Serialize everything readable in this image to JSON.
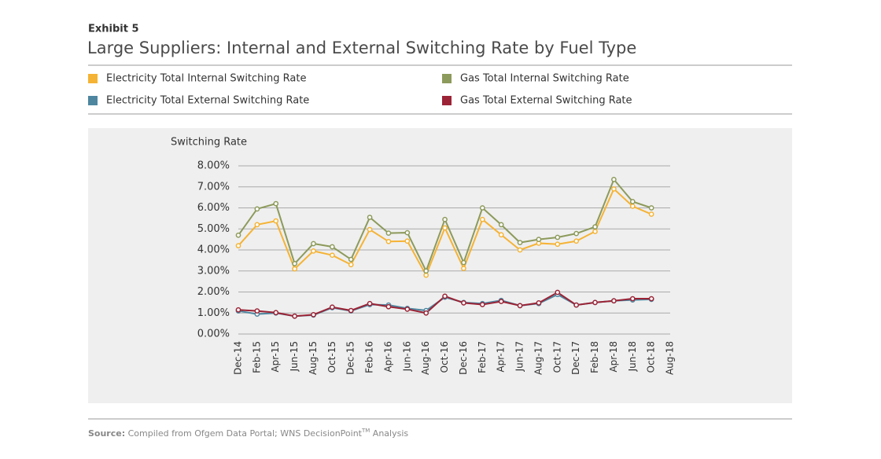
{
  "header": {
    "exhibit": "Exhibit 5"
  },
  "chart_data": {
    "type": "line",
    "title": "Large Suppliers: Internal and External Switching Rate by Fuel Type",
    "y_label": "Switching Rate",
    "categories": [
      "Dec-14",
      "Feb-15",
      "Apr-15",
      "Jun-15",
      "Aug-15",
      "Oct-15",
      "Dec-15",
      "Feb-16",
      "Apr-16",
      "Jun-16",
      "Aug-16",
      "Oct-16",
      "Dec-16",
      "Feb-17",
      "Apr-17",
      "Jun-17",
      "Aug-17",
      "Oct-17",
      "Dec-17",
      "Feb-18",
      "Apr-18",
      "Jun-18",
      "Oct-18",
      "Aug-18"
    ],
    "series": [
      {
        "name": "Electricity Total Internal Switching Rate",
        "color": "#f5b335",
        "values": [
          4.2,
          5.2,
          5.38,
          3.1,
          3.95,
          3.75,
          3.3,
          4.97,
          4.4,
          4.42,
          2.8,
          5.05,
          3.12,
          5.45,
          4.72,
          4.0,
          4.32,
          4.27,
          4.42,
          4.88,
          6.9,
          6.08,
          5.7,
          null
        ]
      },
      {
        "name": "Gas Total Internal Switching Rate",
        "color": "#8c9a5b",
        "values": [
          4.7,
          5.95,
          6.2,
          3.35,
          4.3,
          4.15,
          3.55,
          5.55,
          4.8,
          4.82,
          3.0,
          5.45,
          3.4,
          6.0,
          5.2,
          4.35,
          4.5,
          4.6,
          4.78,
          5.1,
          7.35,
          6.3,
          6.0,
          null
        ]
      },
      {
        "name": "Electricity Total External Switching Rate",
        "color": "#4e86a0",
        "values": [
          1.1,
          0.95,
          1.0,
          0.85,
          0.9,
          1.25,
          1.1,
          1.4,
          1.38,
          1.22,
          1.12,
          1.75,
          1.5,
          1.45,
          1.6,
          1.35,
          1.45,
          1.88,
          1.38,
          1.5,
          1.58,
          1.62,
          1.65,
          null
        ]
      },
      {
        "name": "Gas Total External Switching Rate",
        "color": "#9b2335",
        "values": [
          1.15,
          1.1,
          1.02,
          0.85,
          0.92,
          1.28,
          1.12,
          1.45,
          1.3,
          1.18,
          1.0,
          1.8,
          1.48,
          1.4,
          1.55,
          1.35,
          1.48,
          1.98,
          1.38,
          1.5,
          1.58,
          1.68,
          1.68,
          null
        ]
      }
    ],
    "ylim": [
      0,
      8
    ],
    "yticks": [
      {
        "value": 0,
        "label": "0.00%"
      },
      {
        "value": 1,
        "label": "1.00%"
      },
      {
        "value": 2,
        "label": "2.00%"
      },
      {
        "value": 3,
        "label": "3.00%"
      },
      {
        "value": 4,
        "label": "4.00%"
      },
      {
        "value": 5,
        "label": "5.00%"
      },
      {
        "value": 6,
        "label": "6.00%"
      },
      {
        "value": 7,
        "label": "7.00%"
      },
      {
        "value": 8,
        "label": "8.00%"
      }
    ],
    "grid": true
  },
  "footer": {
    "source_label": "Source:",
    "source_text": "Compiled from Ofgem Data Portal; WNS DecisionPoint",
    "trademark": "TM",
    "source_tail": " Analysis"
  }
}
